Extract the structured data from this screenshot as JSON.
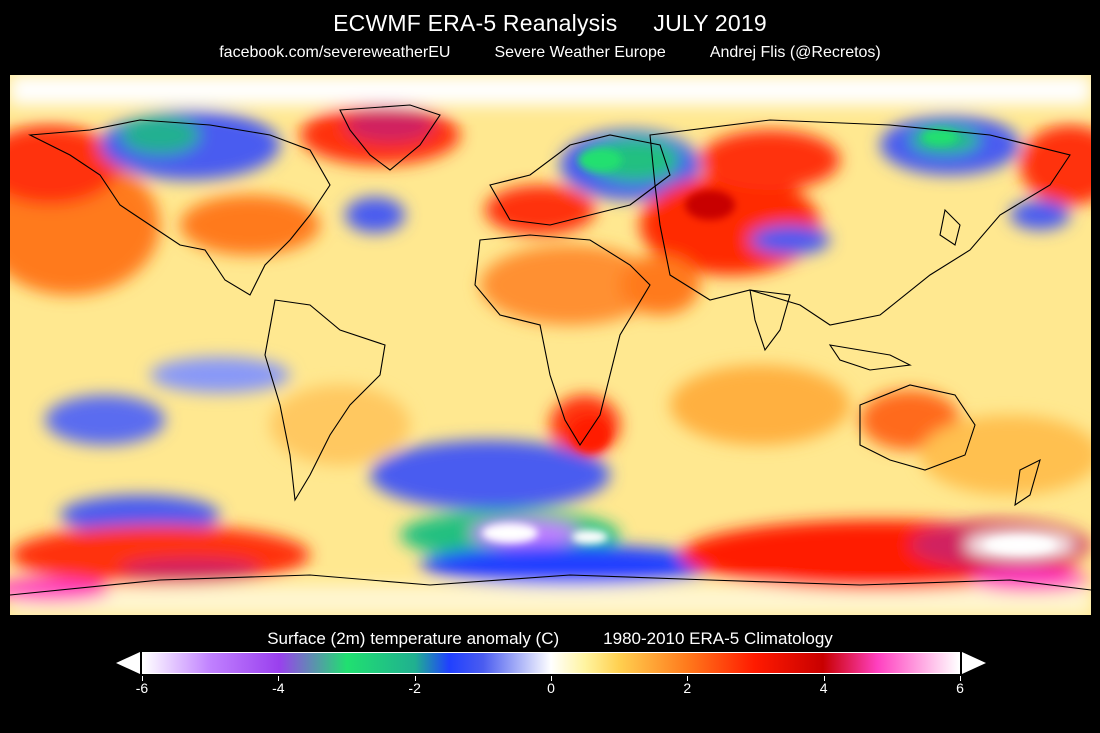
{
  "header": {
    "title": "ECWMF ERA-5 Reanalysis",
    "period": "JULY 2019",
    "credit_facebook": "facebook.com/severeweatherEU",
    "credit_org": "Severe Weather Europe",
    "credit_author": "Andrej Flis (@Recretos)"
  },
  "legend": {
    "variable": "Surface (2m) temperature anomaly (C)",
    "climatology": "1980-2010 ERA-5 Climatology",
    "ticks": [
      "-6",
      "-4",
      "-2",
      "0",
      "2",
      "4",
      "6"
    ],
    "range": [
      -6,
      6
    ],
    "colorscale": [
      {
        "value": -6,
        "color": "#ffffff"
      },
      {
        "value": -5,
        "color": "#c080ff"
      },
      {
        "value": -4,
        "color": "#9a40ee"
      },
      {
        "value": -3,
        "color": "#20e070"
      },
      {
        "value": -2,
        "color": "#20b090"
      },
      {
        "value": -1.5,
        "color": "#2040ff"
      },
      {
        "value": -1,
        "color": "#4a5cf0"
      },
      {
        "value": 0,
        "color": "#ffffff"
      },
      {
        "value": 0.5,
        "color": "#fff4a0"
      },
      {
        "value": 1,
        "color": "#ffd050"
      },
      {
        "value": 2,
        "color": "#ff7a1c"
      },
      {
        "value": 3,
        "color": "#ff1a00"
      },
      {
        "value": 4,
        "color": "#c80000"
      },
      {
        "value": 4.8,
        "color": "#ff40c0"
      },
      {
        "value": 6,
        "color": "#ffffff"
      }
    ]
  },
  "map": {
    "projection": "equirectangular",
    "region": "global"
  }
}
